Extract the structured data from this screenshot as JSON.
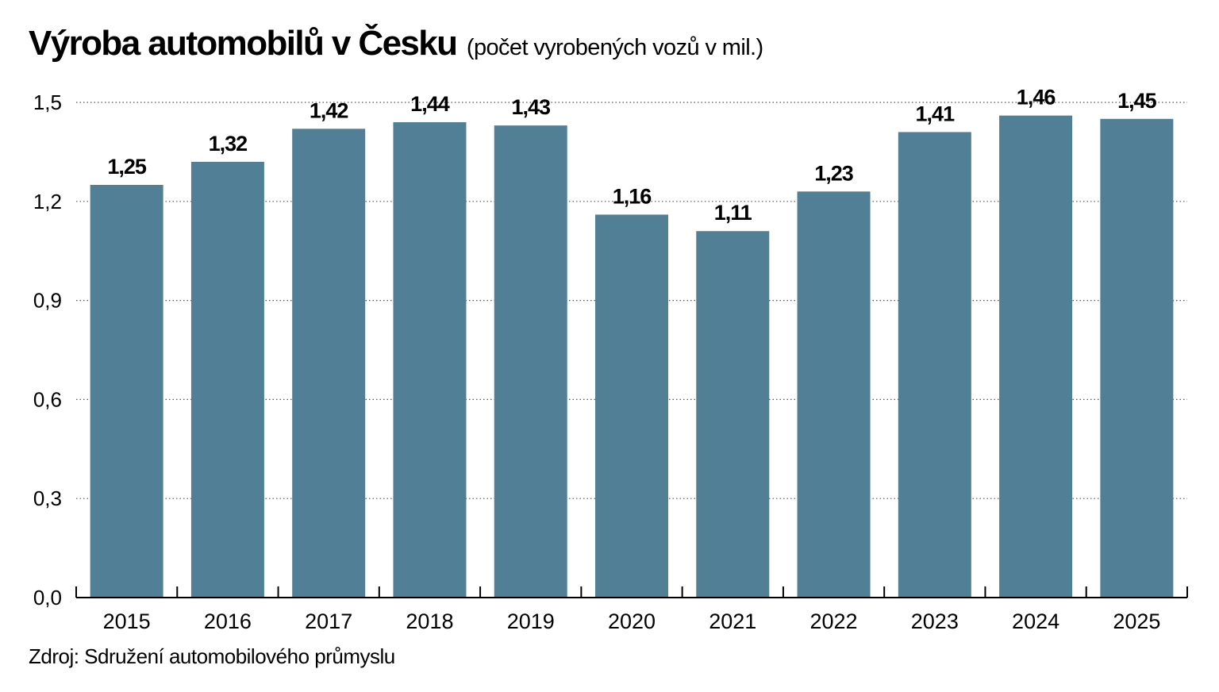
{
  "title": "Výroba automobilů v Česku",
  "subtitle": "(počet vyrobených vozů v mil.)",
  "source": "Zdroj: Sdružení automobilového průmyslu",
  "colors": {
    "bar": "#517f95",
    "grid": "#555555",
    "axis": "#000000"
  },
  "chart_data": {
    "type": "bar",
    "title": "Výroba automobilů v Česku",
    "subtitle": "(počet vyrobených vozů v mil.)",
    "categories": [
      "2015",
      "2016",
      "2017",
      "2018",
      "2019",
      "2020",
      "2021",
      "2022",
      "2023",
      "2024",
      "2025"
    ],
    "values": [
      1.25,
      1.32,
      1.42,
      1.44,
      1.43,
      1.16,
      1.11,
      1.23,
      1.41,
      1.46,
      1.45
    ],
    "value_labels": [
      "1,25",
      "1,32",
      "1,42",
      "1,44",
      "1,43",
      "1,16",
      "1,11",
      "1,23",
      "1,41",
      "1,46",
      "1,45"
    ],
    "yticks": [
      0,
      0.3,
      0.6,
      0.9,
      1.2,
      1.5
    ],
    "ytick_labels": [
      "0,0",
      "0,3",
      "0,6",
      "0,9",
      "1,2",
      "1,5"
    ],
    "ylim": [
      0,
      1.5
    ],
    "xlabel": "",
    "ylabel": "",
    "grid": true,
    "grid_style": "dotted",
    "legend": "none"
  }
}
